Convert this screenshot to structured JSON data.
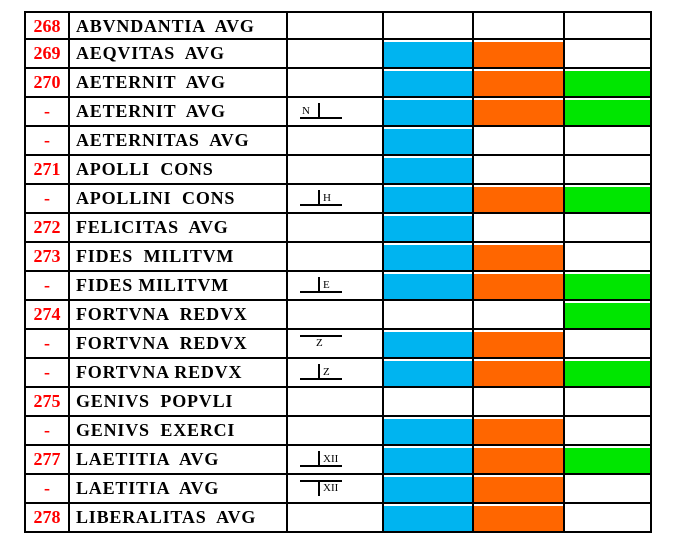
{
  "colors": {
    "number_red": "#ff0000",
    "blue": "#00b4f0",
    "orange": "#ff6600",
    "green": "#00e600",
    "empty": "#ffffff"
  },
  "rows": [
    {
      "num": "268",
      "name": "ABVNDANTIA  AVG",
      "mark": null,
      "cells": [
        "",
        "",
        ""
      ]
    },
    {
      "num": "269",
      "name": "AEQVITAS  AVG",
      "mark": null,
      "cells": [
        "blue",
        "orange",
        ""
      ]
    },
    {
      "num": "270",
      "name": "AETERNIT  AVG",
      "mark": null,
      "cells": [
        "blue",
        "orange",
        "green"
      ]
    },
    {
      "num": "-",
      "name": "AETERNIT  AVG",
      "mark": {
        "letter": "N",
        "style": "bottom-bar-right-tick"
      },
      "cells": [
        "blue",
        "orange",
        "green"
      ]
    },
    {
      "num": "-",
      "name": "AETERNITAS  AVG",
      "mark": null,
      "cells": [
        "blue",
        "",
        ""
      ]
    },
    {
      "num": "271",
      "name": "APOLLI  CONS",
      "mark": null,
      "cells": [
        "blue",
        "",
        ""
      ]
    },
    {
      "num": "-",
      "name": "APOLLINI  CONS",
      "mark": {
        "letter": "H",
        "style": "bottom-bar-left-tick"
      },
      "cells": [
        "blue",
        "orange",
        "green"
      ]
    },
    {
      "num": "272",
      "name": "FELICITAS  AVG",
      "mark": null,
      "cells": [
        "blue",
        "",
        ""
      ]
    },
    {
      "num": "273",
      "name": "FIDES  MILITVM",
      "mark": null,
      "cells": [
        "blue",
        "orange",
        ""
      ]
    },
    {
      "num": "-",
      "name": "FIDES MILITVM",
      "mark": {
        "letter": "E",
        "style": "bottom-bar-left-tick"
      },
      "cells": [
        "blue",
        "orange",
        "green"
      ]
    },
    {
      "num": "274",
      "name": "FORTVNA  REDVX",
      "mark": null,
      "cells": [
        "",
        "",
        "green"
      ]
    },
    {
      "num": "-",
      "name": "FORTVNA  REDVX",
      "mark": {
        "letter": "Z",
        "style": "top-bar"
      },
      "cells": [
        "blue",
        "orange",
        ""
      ]
    },
    {
      "num": "-",
      "name": "FORTVNA REDVX",
      "mark": {
        "letter": "Z",
        "style": "bottom-bar-left-tick"
      },
      "cells": [
        "blue",
        "orange",
        "green"
      ]
    },
    {
      "num": "275",
      "name": "GENIVS  POPVLI",
      "mark": null,
      "cells": [
        "",
        "",
        ""
      ]
    },
    {
      "num": "-",
      "name": "GENIVS  EXERCI",
      "mark": null,
      "cells": [
        "blue",
        "orange",
        ""
      ]
    },
    {
      "num": "277",
      "name": "LAETITIA  AVG",
      "mark": {
        "letter": "XII",
        "style": "bottom-bar-left-tick"
      },
      "cells": [
        "blue",
        "orange",
        "green"
      ]
    },
    {
      "num": "-",
      "name": "LAETITIA  AVG",
      "mark": {
        "letter": "XII",
        "style": "top-bar-left-tick"
      },
      "cells": [
        "blue",
        "orange",
        ""
      ]
    },
    {
      "num": "278",
      "name": "LIBERALITAS  AVG",
      "mark": null,
      "cells": [
        "blue",
        "orange",
        ""
      ]
    }
  ]
}
